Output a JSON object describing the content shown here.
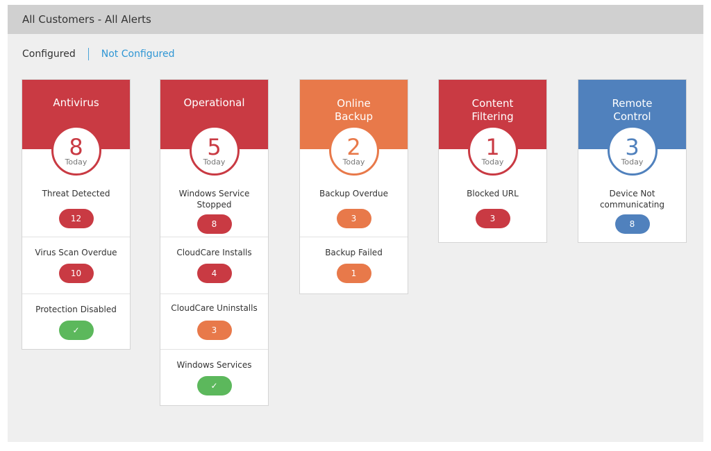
{
  "header": {
    "title": "All Customers - All Alerts"
  },
  "filters": {
    "configured": "Configured",
    "not_configured": "Not Configured"
  },
  "today_label": "Today",
  "colors": {
    "red": "#c93a43",
    "orange": "#e8794a",
    "blue": "#5081bd",
    "green": "#5cb85c",
    "link": "#2f96d4"
  },
  "cards": [
    {
      "title": "Antivirus",
      "count": "8",
      "color": "red",
      "alerts": [
        {
          "label": "Threat Detected",
          "value": "12",
          "status": "red"
        },
        {
          "label": "Virus Scan Overdue",
          "value": "10",
          "status": "red"
        },
        {
          "label": "Protection Disabled",
          "value": "✓",
          "status": "green",
          "icon": "check-icon"
        }
      ]
    },
    {
      "title": "Operational",
      "count": "5",
      "color": "red",
      "alerts": [
        {
          "label": "Windows Service Stopped",
          "value": "8",
          "status": "red"
        },
        {
          "label": "CloudCare Installs",
          "value": "4",
          "status": "red"
        },
        {
          "label": "CloudCare Uninstalls",
          "value": "3",
          "status": "orange"
        },
        {
          "label": "Windows Services",
          "value": "✓",
          "status": "green",
          "icon": "check-icon"
        }
      ]
    },
    {
      "title": "Online Backup",
      "count": "2",
      "color": "orange",
      "alerts": [
        {
          "label": "Backup Overdue",
          "value": "3",
          "status": "orange"
        },
        {
          "label": "Backup Failed",
          "value": "1",
          "status": "orange"
        }
      ]
    },
    {
      "title": "Content Filtering",
      "count": "1",
      "color": "red",
      "alerts": [
        {
          "label": "Blocked URL",
          "value": "3",
          "status": "red"
        }
      ]
    },
    {
      "title": "Remote Control",
      "count": "3",
      "color": "blue",
      "alerts": [
        {
          "label": "Device Not communicating",
          "value": "8",
          "status": "blue"
        }
      ]
    }
  ]
}
